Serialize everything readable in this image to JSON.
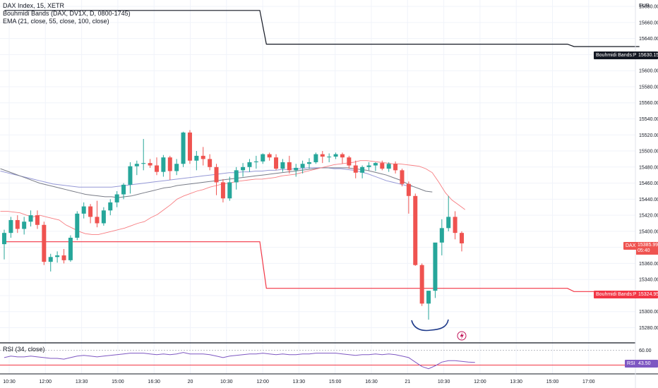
{
  "legend": {
    "symbol": "DAX Index, 15, XETR",
    "indicator1": "Bouhmidi Bands (DAX, DV1X, D, 0800-1745)",
    "indicator2": "EMA (21, close, 55, close, 100, close)",
    "rsi": "RSI (34, close)"
  },
  "currency": "EUR",
  "tags": {
    "upper_band_name": "Bouhmidi Bands:Plot",
    "upper_band_value": "15630.15",
    "lower_band_name": "Bouhmidi Bands:Plot",
    "lower_band_value": "15324.95",
    "price_symbol": "DAX",
    "price_value": "15385.99",
    "price_countdown": "05:40",
    "rsi_name": "RSI",
    "rsi_value": "43.50"
  },
  "colors": {
    "up": "#26a69a",
    "down": "#ef5350",
    "upper_band": "#131722",
    "lower_band": "#f23645",
    "ema21": "#f77c80",
    "ema55": "#787b86",
    "ema100": "#9598d6",
    "rsi": "#7e57c2",
    "annotation": "#1e3a8a"
  },
  "chart_data": {
    "type": "candlestick",
    "price_axis": {
      "ylim": [
        15262,
        15688
      ],
      "ticks": [
        "15680.00",
        "15660.00",
        "15640.00",
        "15620.00",
        "15600.00",
        "15580.00",
        "15560.00",
        "15540.00",
        "15520.00",
        "15500.00",
        "15480.00",
        "15460.00",
        "15440.00",
        "15420.00",
        "15400.00",
        "15380.00",
        "15360.00",
        "15340.00",
        "15320.00",
        "15300.00",
        "15280.00"
      ]
    },
    "time_axis": {
      "labels": [
        "10:30",
        "12:00",
        "13:30",
        "15:00",
        "16:30",
        "20",
        "10:30",
        "12:00",
        "13:30",
        "15:00",
        "16:30",
        "21",
        "10:30",
        "12:00",
        "13:30",
        "15:00",
        "17:00"
      ]
    },
    "candles": [
      [
        15384,
        15402,
        15365,
        15398
      ],
      [
        15398,
        15418,
        15392,
        15414
      ],
      [
        15414,
        15420,
        15398,
        15403
      ],
      [
        15403,
        15418,
        15396,
        15412
      ],
      [
        15412,
        15426,
        15406,
        15420
      ],
      [
        15420,
        15426,
        15403,
        15408
      ],
      [
        15408,
        15412,
        15358,
        15362
      ],
      [
        15362,
        15372,
        15350,
        15368
      ],
      [
        15368,
        15375,
        15361,
        15370
      ],
      [
        15370,
        15378,
        15360,
        15364
      ],
      [
        15364,
        15395,
        15362,
        15392
      ],
      [
        15392,
        15425,
        15389,
        15422
      ],
      [
        15422,
        15436,
        15416,
        15431
      ],
      [
        15431,
        15434,
        15410,
        15418
      ],
      [
        15418,
        15438,
        15405,
        15410
      ],
      [
        15410,
        15430,
        15407,
        15426
      ],
      [
        15426,
        15440,
        15420,
        15436
      ],
      [
        15436,
        15450,
        15430,
        15446
      ],
      [
        15446,
        15460,
        15440,
        15458
      ],
      [
        15458,
        15486,
        15447,
        15481
      ],
      [
        15481,
        15488,
        15470,
        15484
      ],
      [
        15484,
        15515,
        15476,
        15485
      ],
      [
        15485,
        15490,
        15479,
        15482
      ],
      [
        15482,
        15492,
        15470,
        15474
      ],
      [
        15474,
        15495,
        15468,
        15492
      ],
      [
        15492,
        15494,
        15464,
        15475
      ],
      [
        15475,
        15490,
        15470,
        15484
      ],
      [
        15484,
        15524,
        15480,
        15523
      ],
      [
        15523,
        15526,
        15484,
        15488
      ],
      [
        15488,
        15500,
        15476,
        15494
      ],
      [
        15494,
        15505,
        15482,
        15490
      ],
      [
        15490,
        15496,
        15476,
        15480
      ],
      [
        15480,
        15484,
        15445,
        15461
      ],
      [
        15461,
        15465,
        15436,
        15441
      ],
      [
        15441,
        15468,
        15438,
        15461
      ],
      [
        15461,
        15480,
        15452,
        15476
      ],
      [
        15476,
        15485,
        15468,
        15480
      ],
      [
        15480,
        15490,
        15474,
        15486
      ],
      [
        15486,
        15494,
        15478,
        15487
      ],
      [
        15487,
        15497,
        15484,
        15496
      ],
      [
        15496,
        15498,
        15488,
        15492
      ],
      [
        15492,
        15496,
        15476,
        15478
      ],
      [
        15478,
        15490,
        15474,
        15486
      ],
      [
        15486,
        15494,
        15472,
        15476
      ],
      [
        15476,
        15484,
        15468,
        15479
      ],
      [
        15479,
        15488,
        15472,
        15484
      ],
      [
        15484,
        15491,
        15478,
        15486
      ],
      [
        15486,
        15498,
        15484,
        15496
      ],
      [
        15496,
        15500,
        15485,
        15493
      ],
      [
        15493,
        15497,
        15486,
        15493
      ],
      [
        15493,
        15498,
        15490,
        15496
      ],
      [
        15496,
        15498,
        15484,
        15492
      ],
      [
        15492,
        15494,
        15478,
        15482
      ],
      [
        15482,
        15488,
        15466,
        15473
      ],
      [
        15473,
        15482,
        15466,
        15480
      ],
      [
        15480,
        15486,
        15476,
        15482
      ],
      [
        15482,
        15486,
        15475,
        15485
      ],
      [
        15485,
        15488,
        15476,
        15478
      ],
      [
        15478,
        15486,
        15474,
        15484
      ],
      [
        15484,
        15487,
        15472,
        15476
      ],
      [
        15476,
        15478,
        15456,
        15459
      ],
      [
        15459,
        15462,
        15422,
        15444
      ],
      [
        15444,
        15447,
        15357,
        15358
      ],
      [
        15358,
        15360,
        15307,
        15310
      ],
      [
        15310,
        15326,
        15290,
        15326
      ],
      [
        15326,
        15385,
        15317,
        15386
      ],
      [
        15386,
        15415,
        15370,
        15404
      ],
      [
        15404,
        15444,
        15400,
        15418
      ],
      [
        15418,
        15425,
        15390,
        15398
      ],
      [
        15398,
        15400,
        15375,
        15385
      ]
    ],
    "series": [
      {
        "name": "Bouhmidi Bands:Plot",
        "x": [
          0,
          39,
          40,
          86,
          87,
          97
        ],
        "values": [
          15675,
          15675,
          15633,
          15633,
          15630,
          15630
        ]
      },
      {
        "name": "Bouhmidi Bands:Plot",
        "x": [
          0,
          39,
          40,
          86,
          87,
          97
        ],
        "values": [
          15387,
          15387,
          15329,
          15329,
          15325,
          15325
        ]
      }
    ],
    "ema21": [
      15425,
      15425,
      15424,
      15423,
      15420,
      15418,
      15420,
      15418,
      15416,
      15414,
      15408,
      15404,
      15400,
      15397,
      15396,
      15396,
      15398,
      15400,
      15402,
      15404,
      15407,
      15410,
      15412,
      15417,
      15421,
      15427,
      15433,
      15440,
      15444,
      15447,
      15450,
      15452,
      15455,
      15457,
      15459,
      15460,
      15462,
      15463,
      15464,
      15465,
      15465,
      15466,
      15467,
      15469,
      15470,
      15471,
      15473,
      15475,
      15477,
      15479,
      15481,
      15483,
      15484,
      15485,
      15486,
      15488,
      15488,
      15487,
      15486,
      15485,
      15484,
      15484,
      15483,
      15482,
      15481,
      15478,
      15473,
      15461,
      15448,
      15439,
      15433,
      15427
    ],
    "ema55": [
      15478,
      15475,
      15472,
      15469,
      15466,
      15463,
      15460,
      15458,
      15456,
      15454,
      15452,
      15450,
      15448,
      15446,
      15445,
      15444,
      15443,
      15443,
      15442,
      15443,
      15444,
      15446,
      15448,
      15450,
      15452,
      15454,
      15455,
      15457,
      15458,
      15459,
      15460,
      15461,
      15462,
      15463,
      15464,
      15465,
      15466,
      15467,
      15468,
      15469,
      15470,
      15471,
      15472,
      15473,
      15474,
      15475,
      15476,
      15477,
      15478,
      15479,
      15479,
      15479,
      15479,
      15479,
      15478,
      15477,
      15476,
      15474,
      15472,
      15470,
      15467,
      15464,
      15460,
      15456,
      15453,
      15450,
      15449
    ],
    "ema100": [
      15475,
      15473,
      15471,
      15469,
      15467,
      15465,
      15463,
      15461,
      15459,
      15458,
      15457,
      15456,
      15455,
      15455,
      15455,
      15455,
      15455,
      15455,
      15456,
      15457,
      15458,
      15459,
      15460,
      15461,
      15462,
      15463,
      15464,
      15465,
      15466,
      15467,
      15468,
      15469,
      15470,
      15471,
      15472,
      15473,
      15473,
      15474,
      15474,
      15475,
      15475,
      15476,
      15476,
      15477,
      15477,
      15478,
      15478,
      15479,
      15479,
      15479,
      15479,
      15478,
      15478,
      15477,
      15476,
      15474,
      15472,
      15469,
      15466,
      15463,
      15461,
      15459,
      15457,
      15456
    ],
    "rsi_axis": {
      "ticks": [
        "60.00",
        "40.00"
      ],
      "ylim": [
        30,
        68
      ]
    },
    "rsi": [
      50,
      52,
      51,
      51,
      52,
      51,
      50,
      49,
      49,
      48,
      50,
      52,
      53,
      52,
      51,
      52,
      53,
      54,
      55,
      56,
      56,
      56,
      55,
      54,
      55,
      54,
      55,
      57,
      55,
      55,
      55,
      54,
      52,
      50,
      52,
      53,
      54,
      55,
      55,
      56,
      55,
      54,
      55,
      54,
      54,
      55,
      55,
      56,
      56,
      56,
      56,
      55,
      54,
      53,
      54,
      54,
      55,
      54,
      55,
      54,
      52,
      50,
      44,
      38,
      35,
      39,
      44,
      46,
      46,
      45,
      44,
      43.5
    ]
  }
}
